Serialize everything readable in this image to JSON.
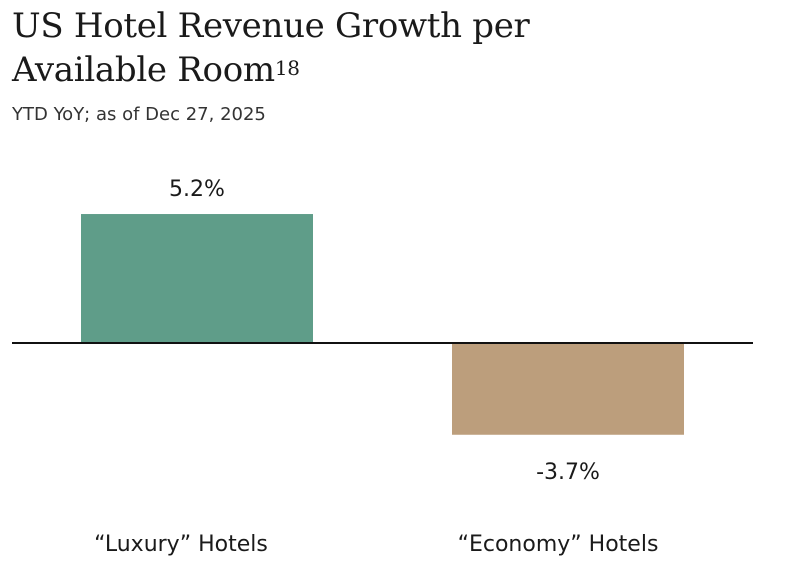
{
  "chart_data": {
    "type": "bar",
    "title": "US Hotel Revenue Growth per Available Room",
    "title_footnote": "18",
    "subtitle": "YTD YoY; as of Dec 27, 2025",
    "categories": [
      "“Luxury” Hotels",
      "“Economy” Hotels"
    ],
    "values": [
      5.2,
      -3.7
    ],
    "data_labels": [
      "5.2%",
      "-3.7%"
    ],
    "colors": [
      "#5f9d89",
      "#bc9e7c"
    ],
    "axis_color": "#111111",
    "grid": false,
    "legend": "none"
  }
}
